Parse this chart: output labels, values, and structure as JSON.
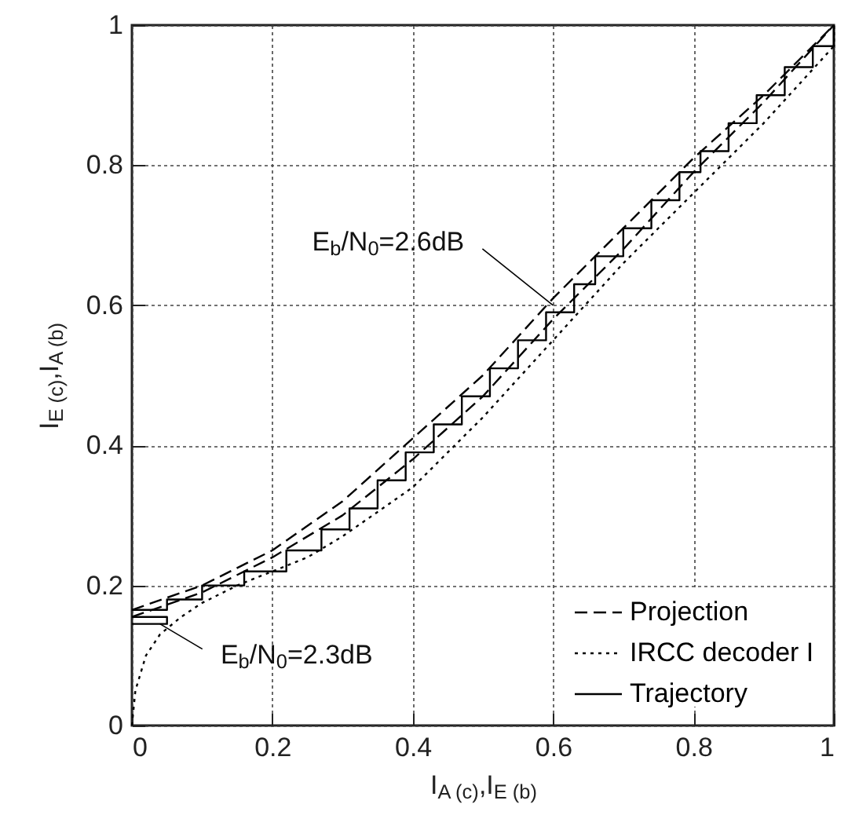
{
  "chart_data": {
    "type": "line",
    "xlabel": "I$_{A (c)}$,I$_{E (b)}$",
    "ylabel": "I$_{E (c)}$,I$_{A (b)}$",
    "xlim": [
      0,
      1
    ],
    "ylim": [
      0,
      1
    ],
    "xticks": [
      0,
      0.2,
      0.4,
      0.6,
      0.8,
      1
    ],
    "yticks": [
      0,
      0.2,
      0.4,
      0.6,
      0.8,
      1
    ],
    "grid": true,
    "legend": "bottom right",
    "series": [
      {
        "color": "#000000",
        "line_style": "dashed",
        "x": [
          0,
          0.1,
          0.2,
          0.3,
          0.4,
          0.5,
          0.6,
          0.7,
          0.8,
          0.9,
          1
        ],
        "values": [
          0.155,
          0.19,
          0.24,
          0.3,
          0.38,
          0.47,
          0.58,
          0.68,
          0.79,
          0.89,
          1
        ]
      },
      {
        "name": "Projection",
        "color": "#000000",
        "line_style": "dashed",
        "x": [
          0,
          0.1,
          0.2,
          0.3,
          0.4,
          0.5,
          0.6,
          0.7,
          0.8,
          0.9,
          1
        ],
        "values": [
          0.165,
          0.2,
          0.25,
          0.32,
          0.41,
          0.5,
          0.61,
          0.71,
          0.81,
          0.9,
          1
        ]
      },
      {
        "name": "IRCC decoder I",
        "color": "#000000",
        "line_style": "dotted",
        "x": [
          0,
          0.005,
          0.02,
          0.04,
          0.07,
          0.1,
          0.15,
          0.2,
          0.25,
          0.3,
          0.4,
          0.5,
          0.6,
          0.7,
          0.8,
          0.9,
          1
        ],
        "values": [
          0,
          0.05,
          0.1,
          0.13,
          0.155,
          0.175,
          0.2,
          0.22,
          0.24,
          0.27,
          0.34,
          0.44,
          0.55,
          0.66,
          0.76,
          0.86,
          0.97
        ]
      },
      {
        "color": "#000000",
        "line_style": "solid",
        "x": [
          0,
          0.05,
          0.05,
          0
        ],
        "values": [
          0.145,
          0.145,
          0.155,
          0.155
        ]
      },
      {
        "name": "Trajectory",
        "color": "#000000",
        "line_style": "solid",
        "x": [
          0,
          0.05,
          0.05,
          0.1,
          0.1,
          0.16,
          0.16,
          0.22,
          0.22,
          0.27,
          0.27,
          0.31,
          0.31,
          0.35,
          0.35,
          0.39,
          0.39,
          0.43,
          0.43,
          0.47,
          0.47,
          0.51,
          0.51,
          0.55,
          0.55,
          0.59,
          0.59,
          0.63,
          0.63,
          0.66,
          0.66,
          0.7,
          0.7,
          0.74,
          0.74,
          0.78,
          0.78,
          0.81,
          0.81,
          0.85,
          0.85,
          0.89,
          0.89,
          0.93,
          0.93,
          0.97,
          0.97,
          1,
          1
        ],
        "values": [
          0.165,
          0.165,
          0.18,
          0.18,
          0.2,
          0.2,
          0.22,
          0.22,
          0.25,
          0.25,
          0.28,
          0.28,
          0.31,
          0.31,
          0.35,
          0.35,
          0.39,
          0.39,
          0.43,
          0.43,
          0.47,
          0.47,
          0.51,
          0.51,
          0.55,
          0.55,
          0.59,
          0.59,
          0.63,
          0.63,
          0.67,
          0.67,
          0.71,
          0.71,
          0.75,
          0.75,
          0.79,
          0.79,
          0.82,
          0.82,
          0.86,
          0.86,
          0.9,
          0.9,
          0.94,
          0.94,
          0.97,
          0.97,
          1
        ]
      }
    ],
    "annotations": [
      {
        "text": "E$_{b}$/N$_{0}$=2.6dB",
        "x": 0.6,
        "y": 0.6
      },
      {
        "text": "E$_{b}$/N$_{0}$=2.3dB",
        "x": 0.04,
        "y": 0.145
      }
    ]
  }
}
